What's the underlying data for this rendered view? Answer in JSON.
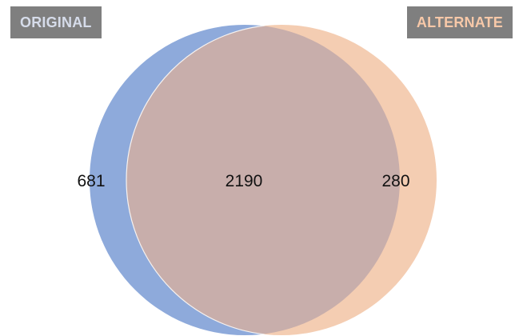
{
  "sets": {
    "left": {
      "label": "ORIGINAL",
      "color": "#8eaadb",
      "label_color": "#d6dcea",
      "label_bg": "#7f7f7f"
    },
    "right": {
      "label": "ALTERNATE",
      "color": "#f4cdb2",
      "label_color": "#f7c8a8",
      "label_bg": "#7f7f7f"
    },
    "overlap_color": "#c8aeab",
    "outline_color": "#f6f2f0"
  },
  "counts": {
    "left_only": "681",
    "overlap": "2190",
    "right_only": "280"
  }
}
